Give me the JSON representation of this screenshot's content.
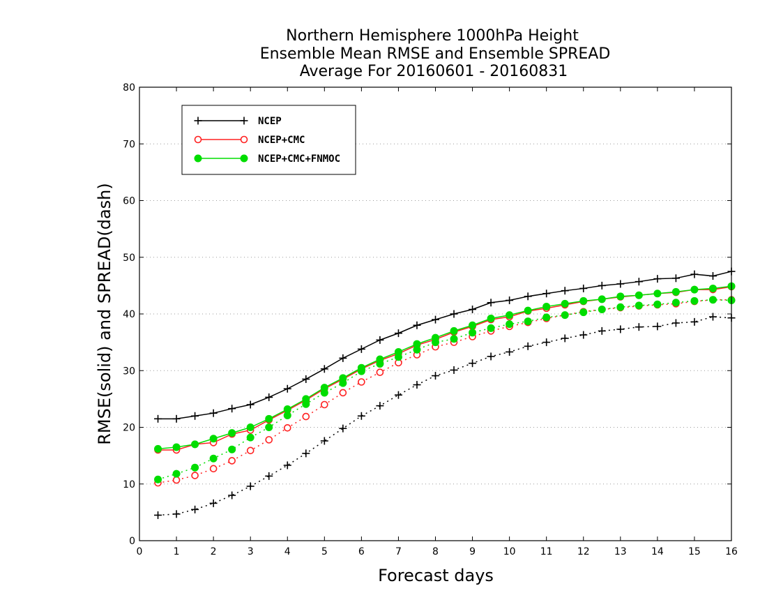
{
  "chart_data": {
    "type": "line",
    "title_lines": [
      "Northern Hemisphere 1000hPa Height",
      "Ensemble Mean RMSE and Ensemble SPREAD",
      "Average For 20160601 - 20160831"
    ],
    "xlabel": "Forecast days",
    "ylabel": "RMSE(solid) and SPREAD(dash)",
    "xlim": [
      0,
      16
    ],
    "ylim": [
      0,
      80
    ],
    "x_ticks": [
      0,
      1,
      2,
      3,
      4,
      5,
      6,
      7,
      8,
      9,
      10,
      11,
      12,
      13,
      14,
      15,
      16
    ],
    "y_ticks": [
      0,
      10,
      20,
      30,
      40,
      50,
      60,
      70,
      80
    ],
    "grid": "horizontal dotted",
    "legend_position": "top-left",
    "x": [
      0.5,
      1,
      1.5,
      2,
      2.5,
      3,
      3.5,
      4,
      4.5,
      5,
      5.5,
      6,
      6.5,
      7,
      7.5,
      8,
      8.5,
      9,
      9.5,
      10,
      10.5,
      11,
      11.5,
      12,
      12.5,
      13,
      13.5,
      14,
      14.5,
      15,
      15.5,
      16
    ],
    "series": [
      {
        "name": "NCEP",
        "color": "#000000",
        "marker": "plus",
        "rmse": [
          21.5,
          21.5,
          22.0,
          22.5,
          23.3,
          24.0,
          25.3,
          26.8,
          28.5,
          30.3,
          32.2,
          33.8,
          35.4,
          36.6,
          38.0,
          39.0,
          40.0,
          40.8,
          42.0,
          42.4,
          43.1,
          43.6,
          44.1,
          44.5,
          45.0,
          45.3,
          45.7,
          46.2,
          46.3,
          47.0,
          46.7,
          47.5
        ],
        "spread": [
          4.5,
          4.7,
          5.5,
          6.6,
          8.0,
          9.6,
          11.4,
          13.3,
          15.4,
          17.6,
          19.8,
          22.0,
          23.8,
          25.7,
          27.5,
          29.1,
          30.1,
          31.3,
          32.5,
          33.3,
          34.3,
          35.0,
          35.7,
          36.3,
          37.0,
          37.3,
          37.7,
          37.8,
          38.4,
          38.6,
          39.5,
          39.3
        ]
      },
      {
        "name": "NCEP+CMC",
        "color": "#ff2020",
        "marker": "open-circle",
        "rmse": [
          16.0,
          16.0,
          17.0,
          17.3,
          18.8,
          19.5,
          21.3,
          23.0,
          24.8,
          26.8,
          28.5,
          30.3,
          31.8,
          33.0,
          34.5,
          35.5,
          36.8,
          37.8,
          39.0,
          39.5,
          40.5,
          41.0,
          41.6,
          42.2,
          42.6,
          43.0,
          43.3,
          43.6,
          43.8,
          44.3,
          44.3,
          44.8
        ],
        "spread": [
          10.2,
          10.7,
          11.5,
          12.7,
          14.1,
          15.9,
          17.8,
          19.9,
          21.9,
          24.0,
          26.1,
          28.0,
          29.7,
          31.4,
          32.8,
          34.2,
          35.0,
          36.0,
          37.0,
          37.8,
          38.5,
          39.2,
          39.8,
          40.4,
          40.8,
          41.1,
          41.4,
          41.6,
          41.8,
          42.2,
          42.5,
          42.5
        ]
      },
      {
        "name": "NCEP+CMC+FNMOC",
        "color": "#00dd00",
        "marker": "filled-circle",
        "rmse": [
          16.2,
          16.5,
          17.0,
          18.0,
          19.0,
          20.0,
          21.5,
          23.2,
          25.0,
          27.0,
          28.7,
          30.5,
          32.0,
          33.3,
          34.7,
          35.8,
          37.0,
          38.0,
          39.2,
          39.8,
          40.6,
          41.3,
          41.8,
          42.3,
          42.6,
          43.1,
          43.3,
          43.6,
          43.9,
          44.3,
          44.5,
          44.9
        ],
        "spread": [
          10.8,
          11.8,
          12.9,
          14.5,
          16.1,
          18.2,
          20.0,
          22.1,
          24.1,
          26.1,
          27.8,
          29.9,
          31.2,
          32.4,
          33.7,
          35.0,
          35.6,
          36.7,
          37.5,
          38.2,
          38.7,
          39.4,
          39.8,
          40.3,
          40.8,
          41.2,
          41.5,
          41.7,
          42.0,
          42.3,
          42.5,
          42.4
        ]
      }
    ]
  }
}
